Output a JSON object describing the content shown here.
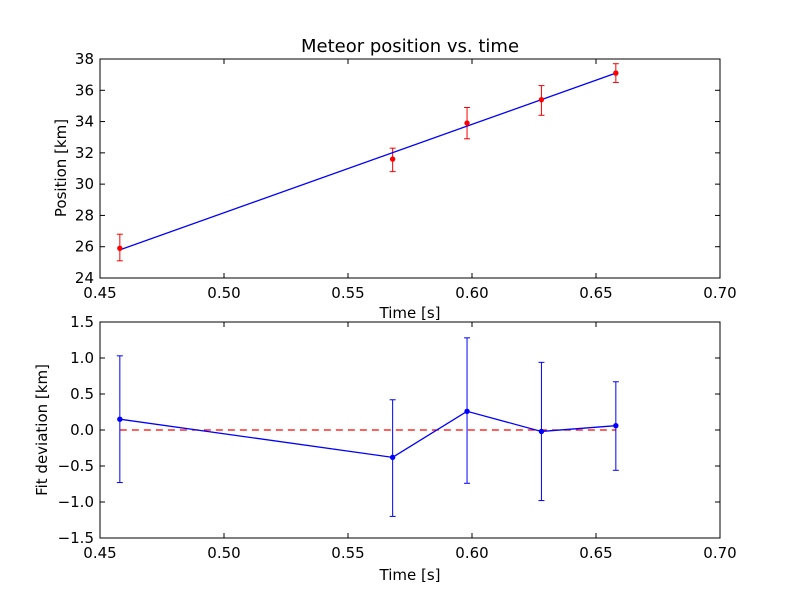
{
  "chart_data": [
    {
      "type": "line",
      "title": "Meteor position vs. time",
      "xlabel": "Time [s]",
      "ylabel": "Position [km]",
      "xlim": [
        0.45,
        0.7
      ],
      "ylim": [
        24,
        38
      ],
      "xticks": [
        "0.45",
        "0.50",
        "0.55",
        "0.60",
        "0.65",
        "0.70"
      ],
      "yticks": [
        "24",
        "26",
        "28",
        "30",
        "32",
        "34",
        "36",
        "38"
      ],
      "grid": false,
      "colors": {
        "fit": "#0000ff",
        "points": "#ff0000",
        "errorbars": "#ff0000"
      },
      "series": [
        {
          "kind": "errorbar-points",
          "x": [
            0.458,
            0.568,
            0.598,
            0.628,
            0.658
          ],
          "y": [
            25.9,
            31.6,
            33.9,
            35.4,
            37.1
          ],
          "yerr_low": [
            0.8,
            0.8,
            1.0,
            1.0,
            0.6
          ],
          "yerr_high": [
            0.9,
            0.7,
            1.0,
            0.9,
            0.6
          ]
        },
        {
          "kind": "fit-line",
          "x": [
            0.458,
            0.658
          ],
          "y": [
            25.8,
            37.1
          ]
        }
      ]
    },
    {
      "type": "line",
      "title": "",
      "xlabel": "Time [s]",
      "ylabel": "Fit deviation [km]",
      "xlim": [
        0.45,
        0.7
      ],
      "ylim": [
        -1.5,
        1.5
      ],
      "xticks": [
        "0.45",
        "0.50",
        "0.55",
        "0.60",
        "0.65",
        "0.70"
      ],
      "yticks": [
        "1.5",
        "1.0",
        "0.5",
        "0.0",
        "−0.5",
        "−1.0",
        "−1.5"
      ],
      "yticks_values": [
        1.5,
        1.0,
        0.5,
        0.0,
        -0.5,
        -1.0,
        -1.5
      ],
      "grid": false,
      "colors": {
        "series": "#0000ff",
        "zero_line": "#ff0000"
      },
      "series": [
        {
          "kind": "errorbar-line",
          "x": [
            0.458,
            0.568,
            0.598,
            0.628,
            0.658
          ],
          "y": [
            0.15,
            -0.38,
            0.26,
            -0.02,
            0.06
          ],
          "yerr_low": [
            0.88,
            0.82,
            1.0,
            0.96,
            0.62
          ],
          "yerr_high": [
            0.88,
            0.8,
            1.02,
            0.96,
            0.61
          ]
        },
        {
          "kind": "zero-reference",
          "x": [
            0.458,
            0.658
          ],
          "y": [
            0.0,
            0.0
          ],
          "style": "dashed"
        }
      ]
    }
  ]
}
